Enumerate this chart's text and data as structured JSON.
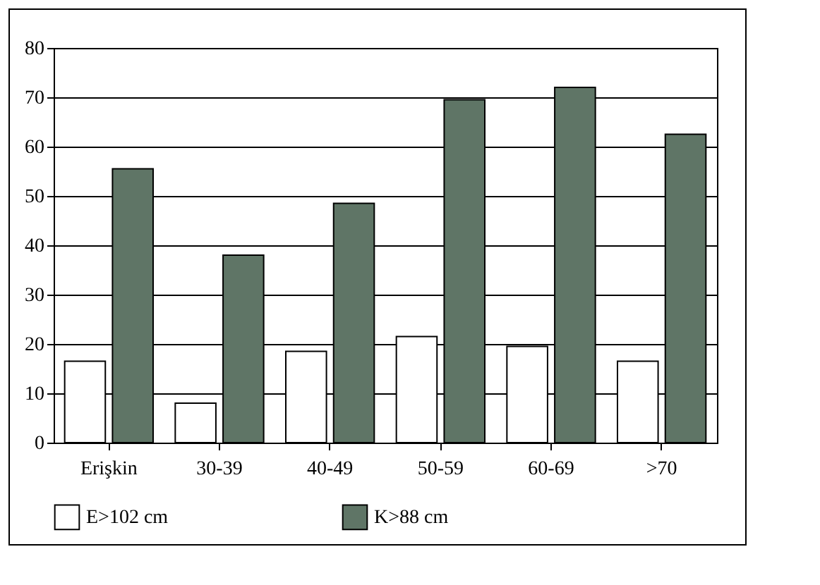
{
  "chart_data": {
    "type": "bar",
    "categories": [
      "Erişkin",
      "30-39",
      "40-49",
      "50-59",
      "60-69",
      ">70"
    ],
    "series": [
      {
        "name": "E>102 cm",
        "color": "#ffffff",
        "values": [
          16.5,
          8,
          18.5,
          21.5,
          19.5,
          16.5
        ]
      },
      {
        "name": "K>88 cm",
        "color": "#5f7566",
        "values": [
          55.5,
          38,
          48.5,
          69.5,
          72,
          62.5
        ]
      }
    ],
    "ylim": [
      0,
      80
    ],
    "yticks": [
      0,
      10,
      20,
      30,
      40,
      50,
      60,
      70,
      80
    ],
    "grid": "y",
    "legend": "bottom"
  }
}
